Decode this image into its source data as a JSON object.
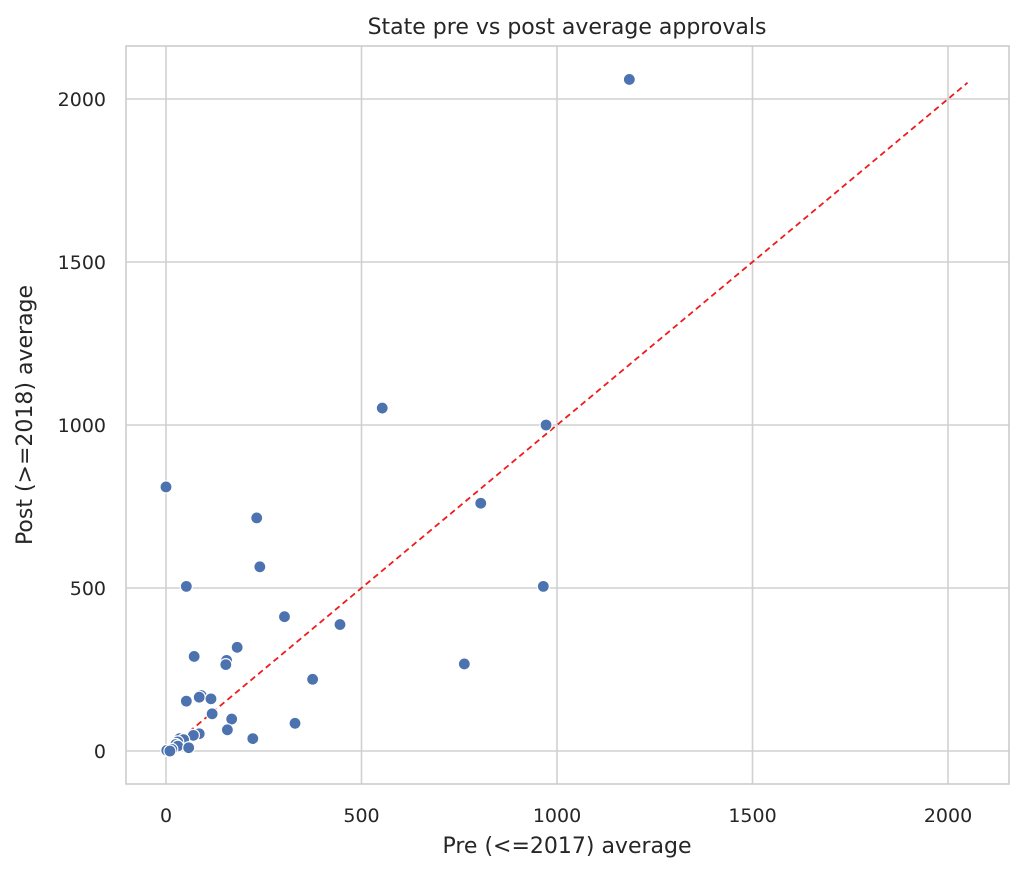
{
  "chart_data": {
    "type": "scatter",
    "title": "State pre vs post average approvals",
    "xlabel": "Pre (<=2017) average",
    "ylabel": "Post (>=2018) average",
    "xlim": [
      -100,
      2160
    ],
    "ylim": [
      -100,
      2160
    ],
    "xticks": [
      0,
      500,
      1000,
      1500,
      2000
    ],
    "yticks": [
      0,
      500,
      1000,
      1500,
      2000
    ],
    "xtick_labels": [
      "0",
      "500",
      "1000",
      "1500",
      "2000"
    ],
    "ytick_labels": [
      "0",
      "500",
      "1000",
      "1500",
      "2000"
    ],
    "grid": true,
    "point_color": "#4c72b0",
    "reference_line": {
      "x": [
        0,
        2050
      ],
      "y": [
        0,
        2050
      ],
      "color": "#ee1c1c",
      "style": "dashed"
    },
    "points": [
      {
        "x": 1185,
        "y": 2060
      },
      {
        "x": 553,
        "y": 1052
      },
      {
        "x": 972,
        "y": 1000
      },
      {
        "x": 0,
        "y": 810
      },
      {
        "x": 805,
        "y": 760
      },
      {
        "x": 232,
        "y": 715
      },
      {
        "x": 240,
        "y": 565
      },
      {
        "x": 52,
        "y": 505
      },
      {
        "x": 965,
        "y": 505
      },
      {
        "x": 303,
        "y": 412
      },
      {
        "x": 445,
        "y": 388
      },
      {
        "x": 182,
        "y": 318
      },
      {
        "x": 72,
        "y": 290
      },
      {
        "x": 155,
        "y": 278
      },
      {
        "x": 153,
        "y": 265
      },
      {
        "x": 763,
        "y": 267
      },
      {
        "x": 375,
        "y": 220
      },
      {
        "x": 90,
        "y": 170
      },
      {
        "x": 85,
        "y": 165
      },
      {
        "x": 115,
        "y": 160
      },
      {
        "x": 52,
        "y": 153
      },
      {
        "x": 118,
        "y": 114
      },
      {
        "x": 168,
        "y": 98
      },
      {
        "x": 330,
        "y": 85
      },
      {
        "x": 157,
        "y": 65
      },
      {
        "x": 85,
        "y": 53
      },
      {
        "x": 70,
        "y": 48
      },
      {
        "x": 222,
        "y": 38
      },
      {
        "x": 35,
        "y": 38
      },
      {
        "x": 45,
        "y": 35
      },
      {
        "x": 30,
        "y": 28
      },
      {
        "x": 25,
        "y": 20
      },
      {
        "x": 30,
        "y": 15
      },
      {
        "x": 58,
        "y": 10
      },
      {
        "x": 15,
        "y": 5
      },
      {
        "x": 2,
        "y": 2
      },
      {
        "x": 10,
        "y": 0
      }
    ]
  }
}
